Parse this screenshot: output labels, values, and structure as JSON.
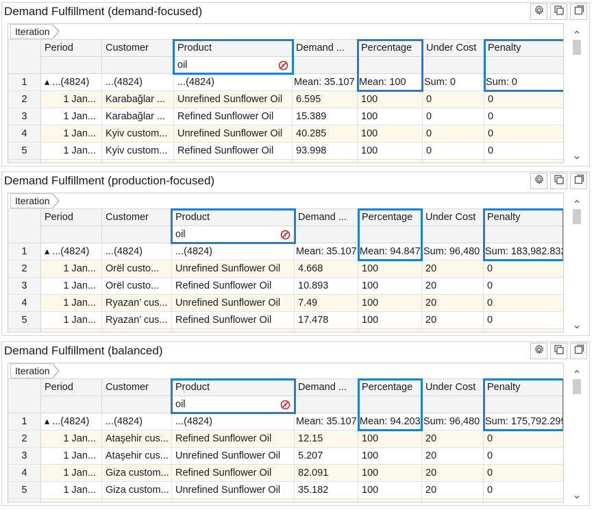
{
  "panels": [
    {
      "title": "Demand Fulfillment (demand-focused)",
      "breadcrumb": "Iteration",
      "filter": "oil",
      "columns": [
        "Period",
        "Customer",
        "Product",
        "Demand ...",
        "Percentage",
        "Under Cost",
        "Penalty"
      ],
      "summary": [
        "1",
        "▴ ...(4824)",
        "...(4824)",
        "...(4824)",
        "Mean: 35.107",
        "Mean: 100",
        "Sum: 0",
        "Sum: 0"
      ],
      "rows": [
        [
          "2",
          "1 Jan...",
          "Karabağlar ...",
          "Unrefined Sunflower Oil",
          "6.595",
          "100",
          "0",
          "0"
        ],
        [
          "3",
          "1 Jan...",
          "Karabağlar ...",
          "Refined Sunflower Oil",
          "15.389",
          "100",
          "0",
          "0"
        ],
        [
          "4",
          "1 Jan...",
          "Kyiv custom...",
          "Unrefined Sunflower Oil",
          "40.285",
          "100",
          "0",
          "0"
        ],
        [
          "5",
          "1 Jan...",
          "Kyiv custom...",
          "Refined Sunflower Oil",
          "93.998",
          "100",
          "0",
          "0"
        ]
      ]
    },
    {
      "title": "Demand Fulfillment (production-focused)",
      "breadcrumb": "Iteration",
      "filter": "oil",
      "columns": [
        "Period",
        "Customer",
        "Product",
        "Demand ...",
        "Percentage",
        "Under Cost",
        "Penalty"
      ],
      "summary": [
        "1",
        "▴ ...(4824)",
        "...(4824)",
        "...(4824)",
        "Mean: 35.107",
        "Mean: 94.847",
        "Sum: 96,480",
        "Sum: 183,982.832"
      ],
      "rows": [
        [
          "2",
          "1 Jan...",
          "Orël custo...",
          "Unrefined Sunflower Oil",
          "4.668",
          "100",
          "20",
          "0"
        ],
        [
          "3",
          "1 Jan...",
          "Orël custo...",
          "Refined Sunflower Oil",
          "10.893",
          "100",
          "20",
          "0"
        ],
        [
          "4",
          "1 Jan...",
          "Ryazan’ cus...",
          "Unrefined Sunflower Oil",
          "7.49",
          "100",
          "20",
          "0"
        ],
        [
          "5",
          "1 Jan...",
          "Ryazan’ cus...",
          "Refined Sunflower Oil",
          "17.478",
          "100",
          "20",
          "0"
        ]
      ]
    },
    {
      "title": "Demand Fulfillment (balanced)",
      "breadcrumb": "Iteration",
      "filter": "oil",
      "columns": [
        "Period",
        "Customer",
        "Product",
        "Demand ...",
        "Percentage",
        "Under Cost",
        "Penalty"
      ],
      "summary": [
        "1",
        "▴ ...(4824)",
        "...(4824)",
        "...(4824)",
        "Mean: 35.107",
        "Mean: 94.203",
        "Sum: 96,480",
        "Sum: 175,792.299"
      ],
      "rows": [
        [
          "2",
          "1 Jan...",
          "Ataşehir cus...",
          "Refined Sunflower Oil",
          "12.15",
          "100",
          "20",
          "0"
        ],
        [
          "3",
          "1 Jan...",
          "Ataşehir cus...",
          "Unrefined Sunflower Oil",
          "5.207",
          "100",
          "20",
          "0"
        ],
        [
          "4",
          "1 Jan...",
          "Giza custom...",
          "Refined Sunflower Oil",
          "82.091",
          "100",
          "20",
          "0"
        ],
        [
          "5",
          "1 Jan...",
          "Giza custom...",
          "Unrefined Sunflower Oil",
          "35.182",
          "100",
          "20",
          "0"
        ]
      ]
    }
  ],
  "icons": {
    "settings": "gear-icon",
    "copy": "copy-icon",
    "maximize": "maximize-icon",
    "clear_filter": "clear-filter-icon"
  },
  "colors": {
    "highlight": "#1a7fe0",
    "alt_row": "#fcf8ea",
    "clear_filter": "#e02020"
  }
}
